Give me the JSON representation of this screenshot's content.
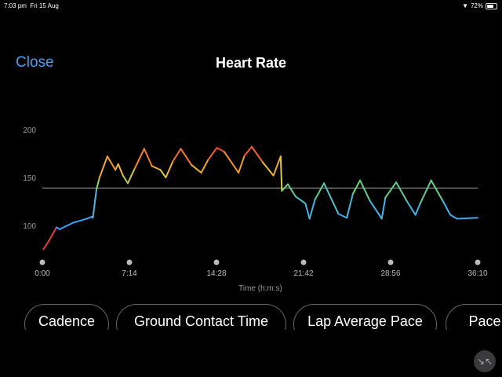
{
  "status_bar": {
    "time": "7:03 pm",
    "date": "Fri 15 Aug",
    "battery": "72%",
    "battery_level": 0.72,
    "wifi_icon": "wifi-icon"
  },
  "header": {
    "close_label": "Close",
    "title": "Heart Rate"
  },
  "chart_data": {
    "type": "line",
    "title": "Heart Rate",
    "xlabel": "Time (h:m:s)",
    "ylabel": "",
    "x_ticks": [
      "0:00",
      "7:14",
      "14:28",
      "21:42",
      "28:56",
      "36:10"
    ],
    "y_ticks": [
      100,
      150,
      200
    ],
    "ylim": [
      70,
      200
    ],
    "xlim_minutes": [
      0,
      36.17
    ],
    "reference_line": 139,
    "series": [
      {
        "name": "Heart Rate",
        "x_minutes": [
          0.08,
          0.5,
          1.17,
          1.43,
          2.6,
          3.7,
          4.1,
          4.2,
          4.5,
          4.75,
          5.4,
          6.07,
          6.3,
          6.7,
          7.1,
          7.66,
          8.46,
          9.1,
          9.8,
          10.26,
          10.85,
          11.5,
          12.4,
          13.2,
          13.8,
          14.5,
          15.1,
          16.3,
          16.8,
          17.4,
          18.3,
          19.2,
          19.8,
          19.9,
          20.4,
          21.05,
          21.85,
          22.2,
          22.65,
          23.4,
          24.6,
          25.3,
          25.8,
          26.4,
          27.2,
          28.2,
          28.5,
          29.4,
          30.3,
          31.0,
          31.4,
          32.3,
          33.25,
          33.9,
          34.45,
          36.17
        ],
        "values": [
          75,
          83,
          98,
          96,
          103,
          107,
          109,
          108,
          138,
          150,
          172,
          158,
          164,
          152,
          144,
          159,
          180,
          162,
          158,
          150,
          167,
          180,
          163,
          155,
          169,
          181,
          177,
          155,
          173,
          182,
          166,
          152,
          172,
          136,
          143,
          130,
          123,
          107,
          127,
          144,
          112,
          108,
          133,
          147,
          126,
          107,
          129,
          145,
          125,
          111,
          123,
          147,
          126,
          111,
          107,
          108
        ]
      }
    ]
  },
  "metric_buttons": [
    "Cadence",
    "Ground Contact Time",
    "Lap Average Pace",
    "Pace"
  ],
  "fab_icon": "collapse-arrows-icon"
}
